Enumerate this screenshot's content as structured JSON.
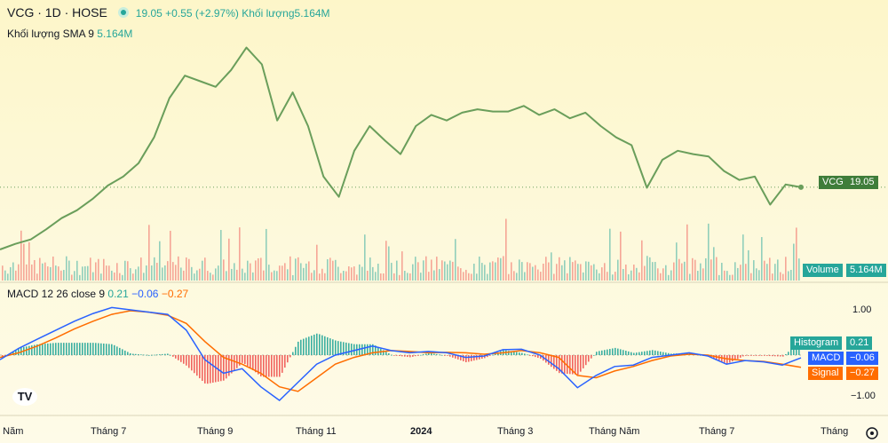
{
  "legend": {
    "symbol": "VCG · 1D · HOSE",
    "price": "19.05",
    "change": "+0.55 (+2.97%)",
    "volume_label": "Khối lượng",
    "volume_value": "5.164M",
    "sma_label": "Khối lượng SMA 9",
    "sma_value": "5.164M",
    "macd_label": "MACD 12 26 close 9",
    "macd_hist": "0.21",
    "macd_macd": "−0.06",
    "macd_signal": "−0.27"
  },
  "tags": {
    "price_symbol": "VCG",
    "price_value": "19.05",
    "volume_label": "Volume",
    "volume_value": "5.164M",
    "hist_label": "Histogram",
    "hist_value": "0.21",
    "macd_label": "MACD",
    "macd_value": "−0.06",
    "signal_label": "Signal",
    "signal_value": "−0.27"
  },
  "axis": {
    "macd_upper": "1.00",
    "macd_lower": "−1.00",
    "x_ticks": [
      "g Năm",
      "Tháng 7",
      "Tháng 9",
      "Tháng 11",
      "2024",
      "Tháng 3",
      "Tháng Năm",
      "Tháng 7",
      "Tháng"
    ]
  },
  "logo": "TV",
  "colors": {
    "price": "#6a9e5b",
    "up": "#26a69a",
    "down": "#ef5350",
    "macd": "#2962ff",
    "signal": "#ff6d00"
  },
  "chart_data": {
    "type": "line",
    "title": "VCG · 1D · HOSE",
    "x_ticks": [
      "g Năm",
      "Tháng 7",
      "Tháng 9",
      "Tháng 11",
      "2024",
      "Tháng 3",
      "Tháng Năm",
      "Tháng 7",
      "Tháng"
    ],
    "price_series": {
      "name": "VCG close",
      "values": [
        13.5,
        14.0,
        14.4,
        15.3,
        16.3,
        17.0,
        18.0,
        19.2,
        20.0,
        21.2,
        23.5,
        27.0,
        29.0,
        28.5,
        28.0,
        29.5,
        31.5,
        30.0,
        25.0,
        27.5,
        24.5,
        20.0,
        18.2,
        22.3,
        24.5,
        23.2,
        22.0,
        24.5,
        25.5,
        25.0,
        25.7,
        26.0,
        25.8,
        25.8,
        26.3,
        25.5,
        26.0,
        25.2,
        25.7,
        24.5,
        23.5,
        22.8,
        19.0,
        21.5,
        22.3,
        22.0,
        21.8,
        20.5,
        19.7,
        20.0,
        17.5,
        19.3,
        19.05
      ],
      "last": 19.05,
      "change": 0.55,
      "change_pct": 2.97
    },
    "volume": {
      "name": "Khối lượng",
      "last": "5.164M",
      "sma_label": "Khối lượng SMA 9",
      "sma_last": "5.164M"
    },
    "macd": {
      "params": "12 26 close 9",
      "histogram_last": 0.21,
      "macd_last": -0.06,
      "signal_last": -0.27,
      "y_ticks": [
        1.0,
        -1.0
      ],
      "macd_values": [
        -0.1,
        0.15,
        0.35,
        0.55,
        0.75,
        0.92,
        1.05,
        1.0,
        0.95,
        0.9,
        0.55,
        -0.1,
        -0.4,
        -0.3,
        -0.7,
        -1.0,
        -0.6,
        -0.2,
        0.0,
        0.1,
        0.2,
        0.1,
        0.05,
        0.08,
        0.05,
        -0.05,
        -0.02,
        0.12,
        0.13,
        0.0,
        -0.3,
        -0.72,
        -0.45,
        -0.25,
        -0.22,
        -0.05,
        0.0,
        0.05,
        -0.02,
        -0.2,
        -0.12,
        -0.15,
        -0.22,
        -0.06
      ],
      "signal_values": [
        -0.05,
        0.05,
        0.2,
        0.38,
        0.58,
        0.75,
        0.9,
        0.98,
        0.95,
        0.88,
        0.7,
        0.3,
        -0.05,
        -0.2,
        -0.4,
        -0.7,
        -0.8,
        -0.5,
        -0.2,
        -0.05,
        0.05,
        0.1,
        0.08,
        0.05,
        0.06,
        0.05,
        0.02,
        0.05,
        0.1,
        0.05,
        -0.05,
        -0.45,
        -0.5,
        -0.35,
        -0.25,
        -0.12,
        -0.02,
        0.02,
        0.0,
        -0.08,
        -0.12,
        -0.14,
        -0.2,
        -0.27
      ]
    }
  }
}
